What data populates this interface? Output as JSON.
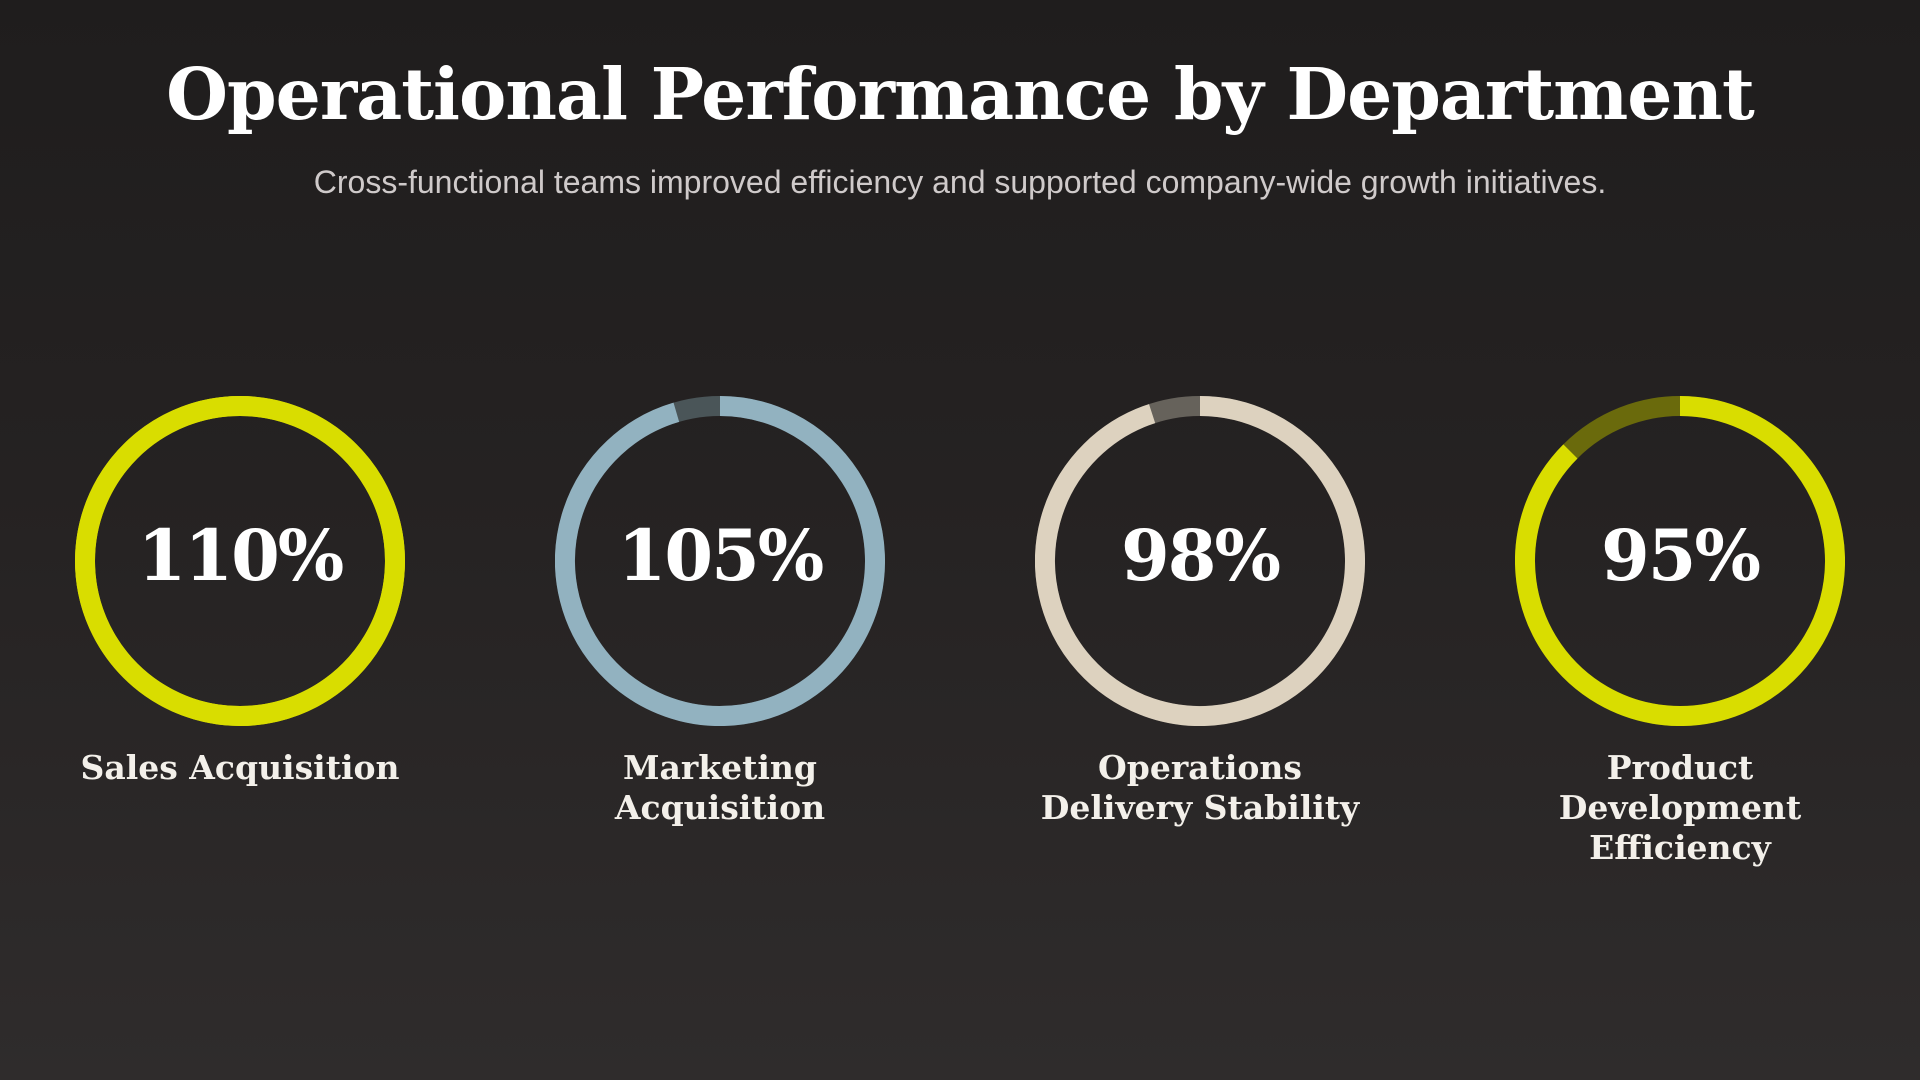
{
  "title": "Operational Performance by Department",
  "subtitle": "Cross-functional teams improved efficiency and supported company-wide growth initiatives.",
  "chart_data": {
    "type": "gauge",
    "unit": "%",
    "items": [
      {
        "label": "Sales Acquisition",
        "value": 110,
        "value_label": "110%",
        "color": "#d9dd00",
        "track_color": "#6a6a0c"
      },
      {
        "label": "Marketing Acquisition",
        "value": 105,
        "value_label": "105%",
        "color": "#92b2c0",
        "track_color": "#4a5558"
      },
      {
        "label": "Operations Delivery Stability",
        "value": 98,
        "value_label": "98%",
        "color": "#ddd2bf",
        "track_color": "#66625b"
      },
      {
        "label": "Product Development Efficiency",
        "value": 95,
        "value_label": "95%",
        "color": "#d9dd00",
        "track_color": "#6a6a0c"
      }
    ]
  }
}
